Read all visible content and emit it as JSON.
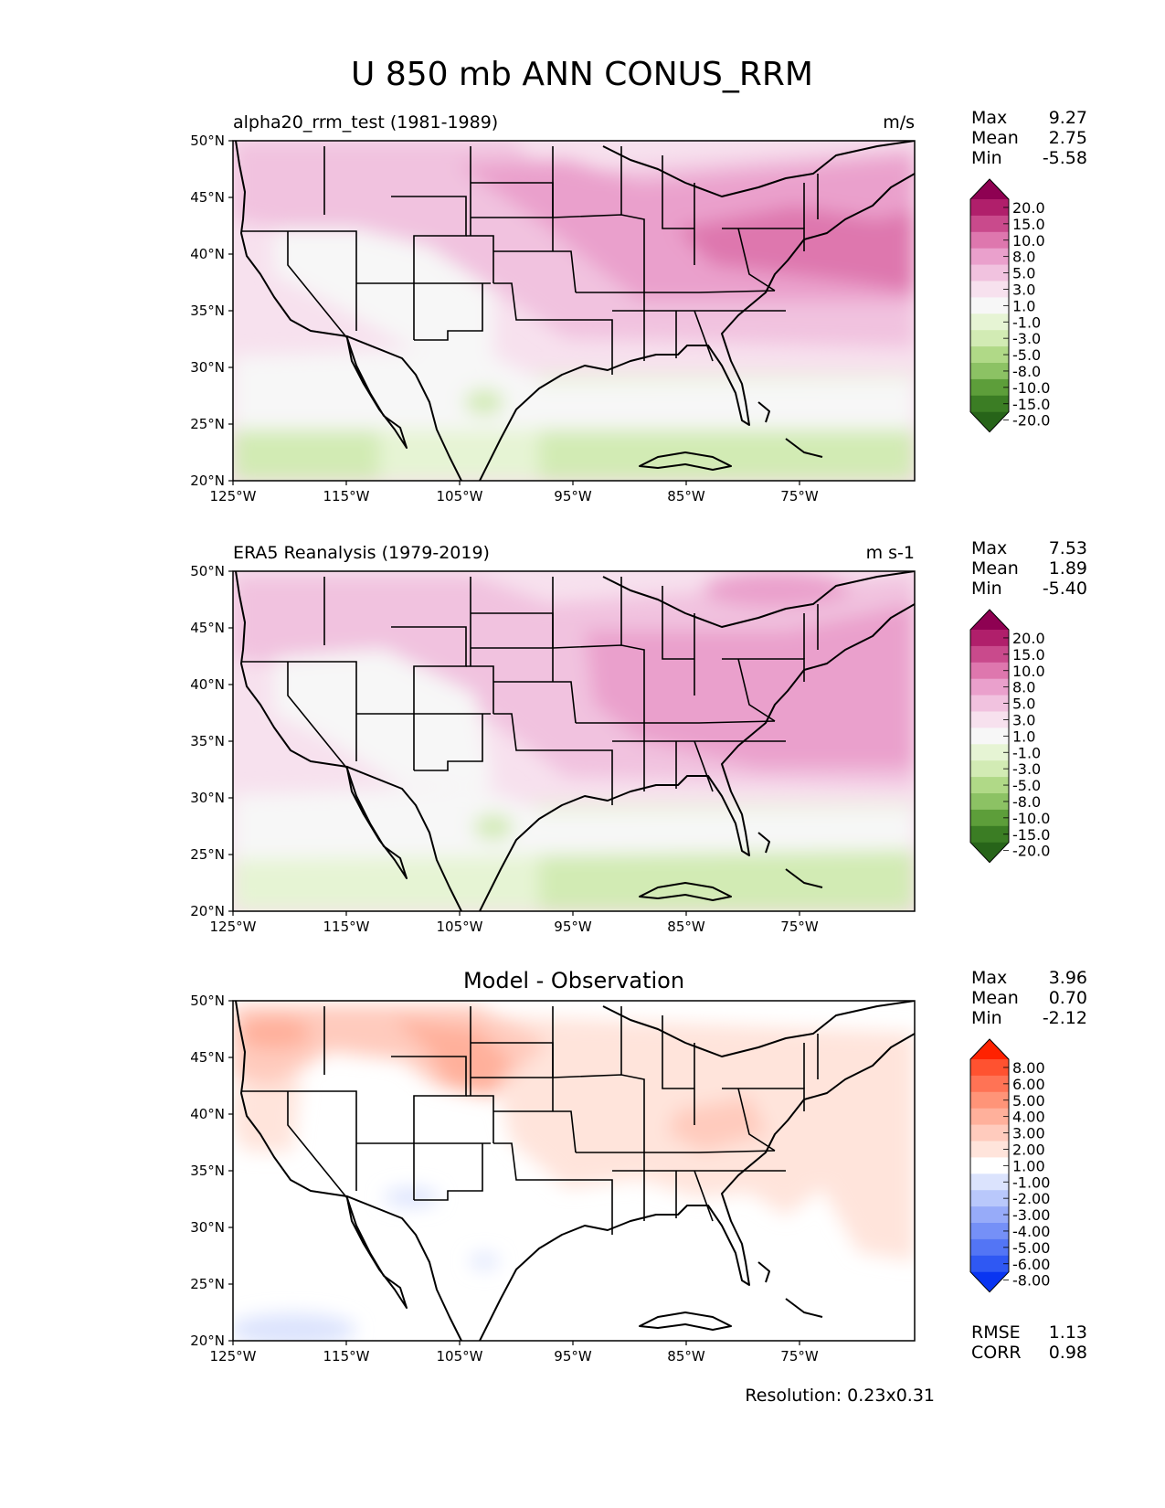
{
  "figure": {
    "title": "U 850 mb ANN CONUS_RRM",
    "resolution": "Resolution: 0.23x0.31"
  },
  "axes": {
    "lat_ticks": [
      "50°N",
      "45°N",
      "40°N",
      "35°N",
      "30°N",
      "25°N",
      "20°N"
    ],
    "lon_ticks": [
      "125°W",
      "115°W",
      "105°W",
      "95°W",
      "85°W",
      "75°W"
    ]
  },
  "panels": [
    {
      "name": "test",
      "left_title": "alpha20_rrm_test (1981-1989)",
      "center_title": "",
      "units": "m/s",
      "stats": [
        {
          "label": "Max",
          "value": "9.27"
        },
        {
          "label": "Mean",
          "value": "2.75"
        },
        {
          "label": "Min",
          "value": "-5.58"
        }
      ]
    },
    {
      "name": "reference",
      "left_title": "ERA5 Reanalysis (1979-2019)",
      "center_title": "",
      "units": "m s-1",
      "stats": [
        {
          "label": "Max",
          "value": "7.53"
        },
        {
          "label": "Mean",
          "value": "1.89"
        },
        {
          "label": "Min",
          "value": "-5.40"
        }
      ]
    },
    {
      "name": "difference",
      "left_title": "",
      "center_title": "Model - Observation",
      "units": "",
      "stats": [
        {
          "label": "Max",
          "value": "3.96"
        },
        {
          "label": "Mean",
          "value": "0.70"
        },
        {
          "label": "Min",
          "value": "-2.12"
        }
      ],
      "metrics": [
        {
          "label": "RMSE",
          "value": "1.13"
        },
        {
          "label": "CORR",
          "value": "0.98"
        }
      ]
    }
  ],
  "colorbars": {
    "field": {
      "labels": [
        "20.0",
        "15.0",
        "10.0",
        "8.0",
        "5.0",
        "3.0",
        "1.0",
        "-1.0",
        "-3.0",
        "-5.0",
        "-8.0",
        "-10.0",
        "-15.0",
        "-20.0"
      ],
      "colors": [
        "#8e0152",
        "#b01f6b",
        "#c94a8c",
        "#de77ae",
        "#eaa0cc",
        "#f1c2df",
        "#f7e1ee",
        "#f7f7f7",
        "#e6f4d4",
        "#d2ebb4",
        "#b0d987",
        "#8cc264",
        "#5d9e3a",
        "#3b7d24",
        "#276419"
      ]
    },
    "diff": {
      "labels": [
        "8.00",
        "6.00",
        "5.00",
        "4.00",
        "3.00",
        "2.00",
        "1.00",
        "-1.00",
        "-2.00",
        "-3.00",
        "-4.00",
        "-5.00",
        "-6.00",
        "-8.00"
      ],
      "colors": [
        "#ff2200",
        "#ff5230",
        "#ff7355",
        "#ff9478",
        "#ffb09b",
        "#ffcbbd",
        "#ffe4db",
        "#ffffff",
        "#dbe3fd",
        "#b9c8fb",
        "#97abf9",
        "#7590f7",
        "#5375f5",
        "#2f58f3",
        "#0a35f1"
      ]
    }
  }
}
